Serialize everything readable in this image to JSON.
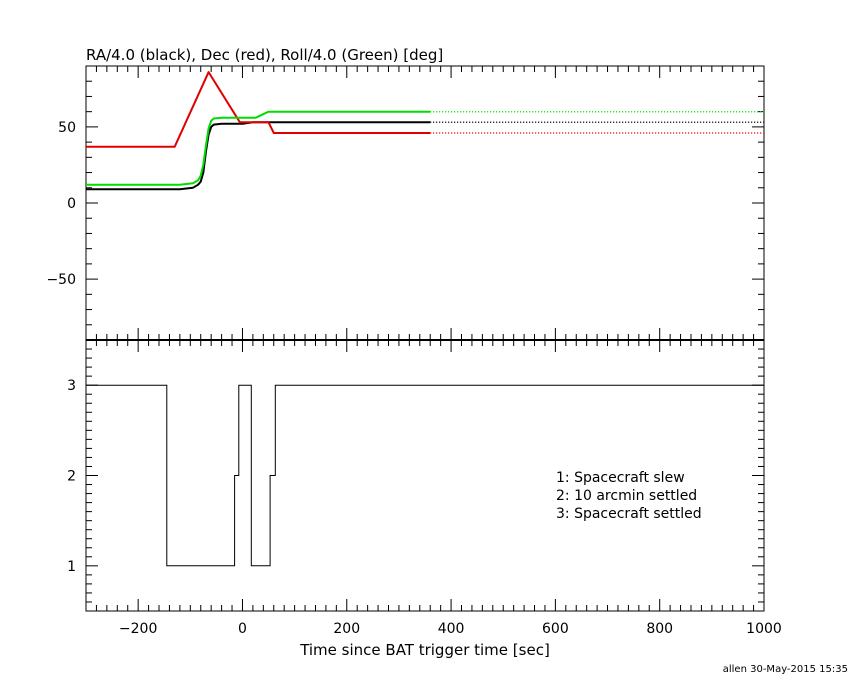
{
  "chart_data": [
    {
      "type": "line",
      "title": "RA/4.0 (black), Dec (red), Roll/4.0 (Green) [deg]",
      "xlim": [
        -300,
        1000
      ],
      "ylim": [
        -90,
        90
      ],
      "yticks": [
        -50,
        0,
        50
      ],
      "dotted_after_x": 360,
      "series": [
        {
          "color": "#000000",
          "points": [
            [
              -300,
              9
            ],
            [
              -120,
              9
            ],
            [
              -95,
              10
            ],
            [
              -85,
              12
            ],
            [
              -80,
              14
            ],
            [
              -75,
              20
            ],
            [
              -70,
              34
            ],
            [
              -65,
              45
            ],
            [
              -60,
              50
            ],
            [
              -55,
              51.5
            ],
            [
              -40,
              52
            ],
            [
              0,
              52
            ],
            [
              20,
              53
            ],
            [
              40,
              53
            ],
            [
              360,
              53
            ],
            [
              1000,
              53
            ]
          ]
        },
        {
          "color": "#e00000",
          "points": [
            [
              -300,
              37
            ],
            [
              -130,
              37
            ],
            [
              -65,
              86
            ],
            [
              -5,
              53
            ],
            [
              50,
              53
            ],
            [
              60,
              46
            ],
            [
              360,
              46
            ],
            [
              1000,
              46
            ]
          ]
        },
        {
          "color": "#00dd00",
          "points": [
            [
              -300,
              12
            ],
            [
              -120,
              12
            ],
            [
              -95,
              13
            ],
            [
              -85,
              15
            ],
            [
              -80,
              18
            ],
            [
              -75,
              25
            ],
            [
              -70,
              38
            ],
            [
              -65,
              49
            ],
            [
              -60,
              54
            ],
            [
              -55,
              55.5
            ],
            [
              -40,
              56
            ],
            [
              25,
              56
            ],
            [
              50,
              60
            ],
            [
              360,
              60
            ],
            [
              1000,
              60
            ]
          ]
        }
      ]
    },
    {
      "type": "line",
      "xlabel": "Time since BAT trigger time [sec]",
      "xlim": [
        -300,
        1000
      ],
      "ylim": [
        0.5,
        3.5
      ],
      "xticks": [
        -200,
        0,
        200,
        400,
        600,
        800,
        1000
      ],
      "yticks": [
        1,
        2,
        3
      ],
      "step_points": [
        [
          -300,
          3
        ],
        [
          -145,
          3
        ],
        [
          -145,
          1
        ],
        [
          -15,
          1
        ],
        [
          -15,
          2
        ],
        [
          -7,
          2
        ],
        [
          -7,
          3
        ],
        [
          17,
          3
        ],
        [
          17,
          1
        ],
        [
          53,
          1
        ],
        [
          53,
          2
        ],
        [
          63,
          2
        ],
        [
          63,
          3
        ],
        [
          1000,
          3
        ]
      ],
      "color": "#000000",
      "legend": [
        "1: Spacecraft slew",
        "2: 10 arcmin settled",
        "3: Spacecraft settled"
      ]
    }
  ],
  "footer": "allen 30-May-2015 15:35"
}
